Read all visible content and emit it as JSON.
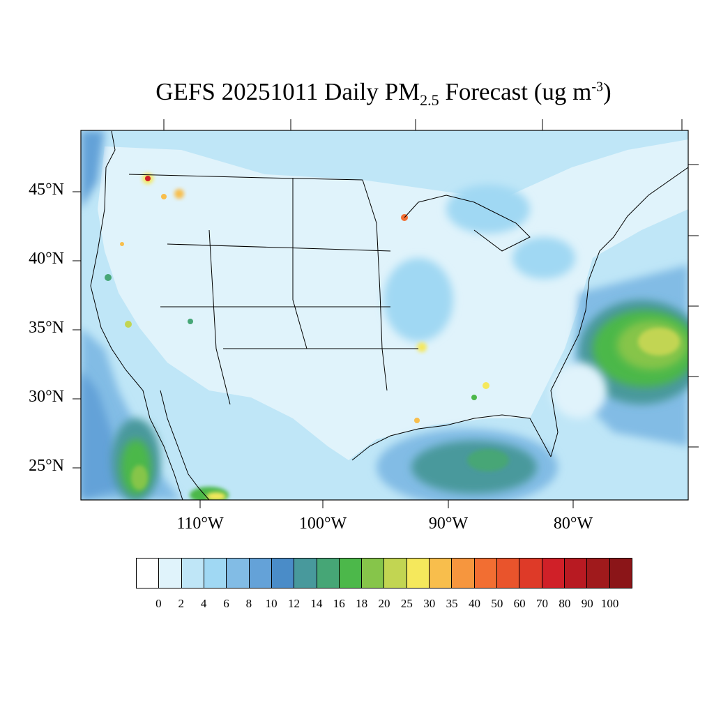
{
  "title": {
    "prefix": "GEFS 20251011 Daily PM",
    "sub": "2.5",
    "middle": " Forecast (ug m",
    "sup": "-3",
    "suffix": ")"
  },
  "lat_labels": [
    "45°N",
    "40°N",
    "35°N",
    "30°N",
    "25°N"
  ],
  "lon_labels": [
    "110°W",
    "100°W",
    "90°W",
    "80°W"
  ],
  "colorbar": {
    "levels": [
      "0",
      "2",
      "4",
      "6",
      "8",
      "10",
      "12",
      "14",
      "16",
      "18",
      "20",
      "25",
      "30",
      "35",
      "40",
      "50",
      "60",
      "70",
      "80",
      "90",
      "100"
    ],
    "colors": [
      "#ffffff",
      "#e0f3fb",
      "#bfe6f7",
      "#a0d8f3",
      "#82bce5",
      "#64a2d8",
      "#4a8cc8",
      "#48999c",
      "#46a676",
      "#4cb84a",
      "#86c54a",
      "#c2d552",
      "#f5e85c",
      "#f8be4c",
      "#f6963e",
      "#f26e32",
      "#e9542c",
      "#de3a28",
      "#d02028",
      "#b81a22",
      "#a01a1c",
      "#8b1518"
    ]
  }
}
